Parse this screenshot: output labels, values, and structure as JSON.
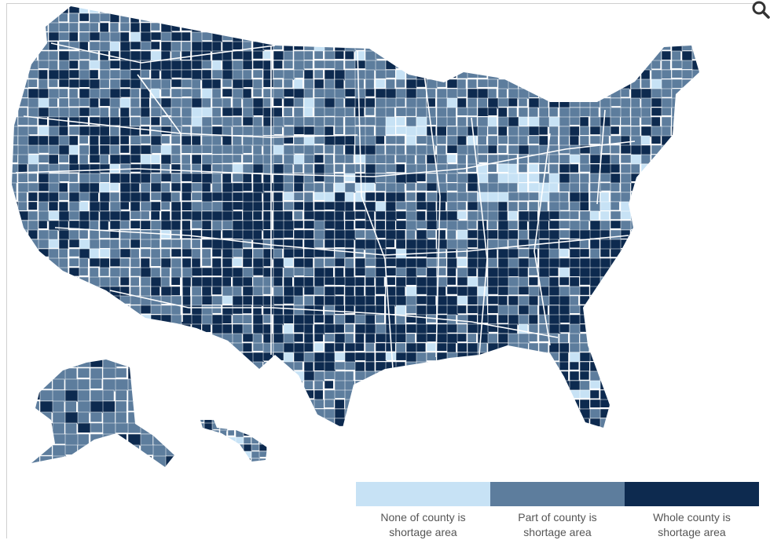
{
  "colors": {
    "none": "#c7e2f5",
    "part": "#5d7d9d",
    "whole": "#0d2a4f",
    "border": "#ffffff"
  },
  "toolbar": {
    "zoom_icon": "magnifier-icon"
  },
  "legend": {
    "items": [
      {
        "label": "None of county is shortage area",
        "color_key": "none"
      },
      {
        "label": "Part of county is shortage area",
        "color_key": "part"
      },
      {
        "label": "Whole county is shortage area",
        "color_key": "whole"
      }
    ]
  }
}
